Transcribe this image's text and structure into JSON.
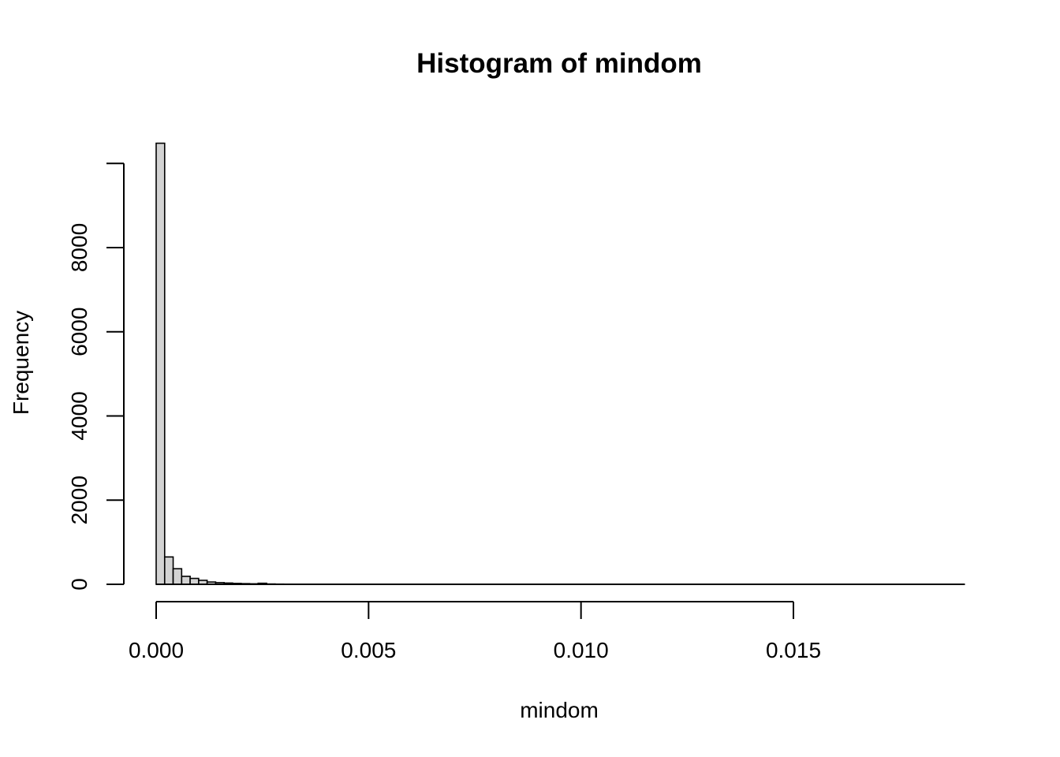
{
  "chart_data": {
    "type": "bar",
    "title": "Histogram of mindom",
    "xlabel": "mindom",
    "ylabel": "Frequency",
    "xlim": [
      0,
      0.019
    ],
    "ylim": [
      0,
      10500
    ],
    "bin_width": 0.0002,
    "bins_start": [
      0,
      0.0002,
      0.0004,
      0.0006,
      0.0008,
      0.001,
      0.0012,
      0.0014,
      0.0016,
      0.0018,
      0.002,
      0.0022,
      0.0024,
      0.0026,
      0.0028,
      0.003
    ],
    "values": [
      10480,
      650,
      370,
      190,
      140,
      95,
      55,
      40,
      30,
      22,
      16,
      12,
      25,
      8,
      5,
      4
    ],
    "x_ticks": [
      0,
      0.005,
      0.01,
      0.015
    ],
    "x_tick_labels": [
      "0.000",
      "0.005",
      "0.010",
      "0.015"
    ],
    "y_ticks": [
      0,
      2000,
      4000,
      6000,
      8000
    ],
    "y_tick_labels": [
      "0",
      "2000",
      "4000",
      "6000",
      "8000"
    ],
    "y_axis_max_tick": 10000,
    "grid": false,
    "colors": {
      "bar_fill": "#d3d3d3",
      "bar_stroke": "#000000"
    }
  }
}
